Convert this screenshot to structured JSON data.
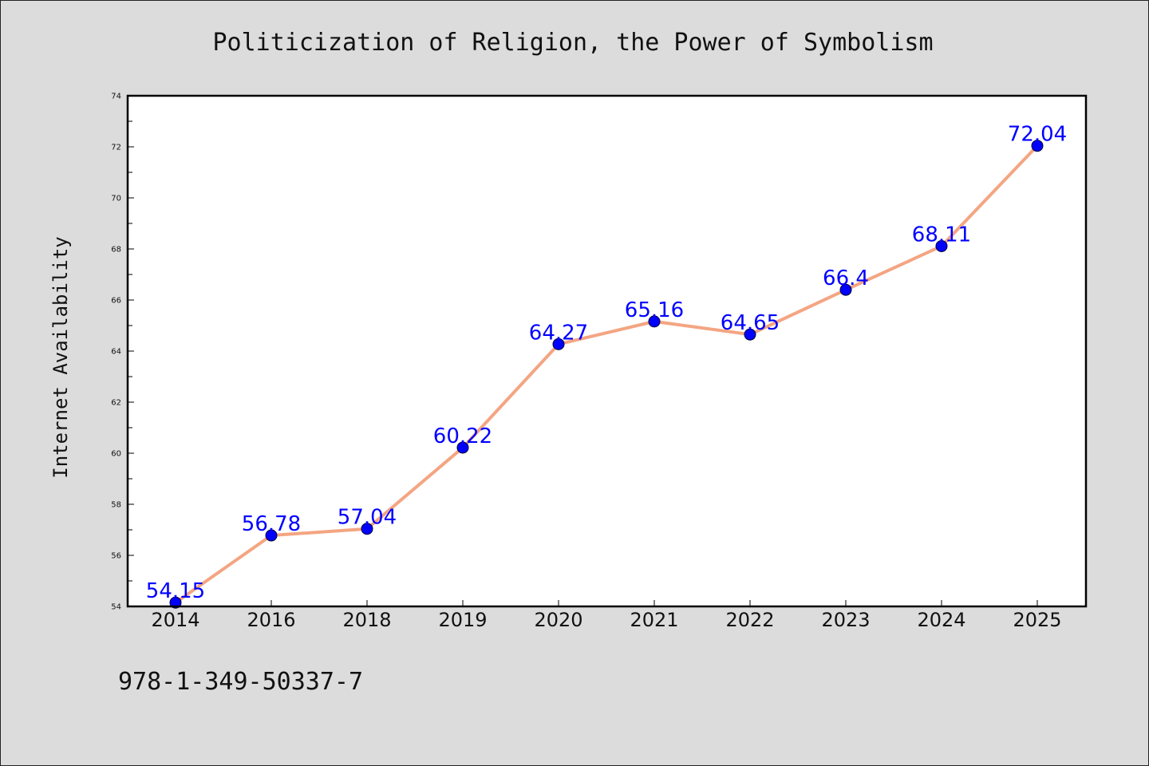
{
  "chart_data": {
    "type": "line",
    "title": "Politicization of Religion, the Power of Symbolism",
    "xlabel": "",
    "ylabel": "Internet Availability",
    "categories": [
      "2014",
      "2016",
      "2018",
      "2019",
      "2020",
      "2021",
      "2022",
      "2023",
      "2024",
      "2025"
    ],
    "series": [
      {
        "values": [
          54.15,
          56.78,
          57.04,
          60.22,
          64.27,
          65.16,
          64.65,
          66.4,
          68.11,
          72.04
        ],
        "labels": [
          "54.15",
          "56.78",
          "57.04",
          "60.22",
          "64.27",
          "65.16",
          "64.65",
          "66.4",
          "68.11",
          "72.04"
        ],
        "line_color": "#f4a582",
        "marker_color": "#0000ff"
      }
    ],
    "ylim": [
      54,
      74
    ],
    "yticks": [
      "54",
      "56",
      "58",
      "60",
      "62",
      "64",
      "66",
      "68",
      "70",
      "72",
      "74"
    ],
    "grid": false,
    "legend": "none"
  },
  "footer": {
    "isbn": "978-1-349-50337-7"
  },
  "colors": {
    "background": "#dcdcdc",
    "plot_area": "#ffffff",
    "line": "#f4a582",
    "marker": "#0000ff",
    "data_label": "#0000ff"
  }
}
